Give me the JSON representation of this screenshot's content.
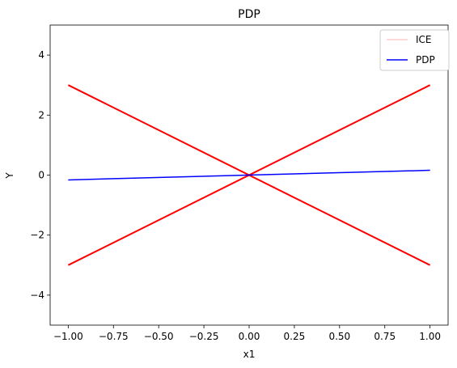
{
  "chart_data": {
    "type": "line",
    "title": "PDP",
    "xlabel": "x1",
    "ylabel": "Y",
    "xlim": [
      -1.1,
      1.1
    ],
    "ylim": [
      -5,
      5
    ],
    "xticks": [
      -1.0,
      -0.75,
      -0.5,
      -0.25,
      0.0,
      0.25,
      0.5,
      0.75,
      1.0
    ],
    "xtick_labels": [
      "−1.00",
      "−0.75",
      "−0.50",
      "−0.25",
      "0.00",
      "0.25",
      "0.50",
      "0.75",
      "1.00"
    ],
    "yticks": [
      -4,
      -2,
      0,
      2,
      4
    ],
    "ytick_labels": [
      "−4",
      "−2",
      "0",
      "2",
      "4"
    ],
    "grid": false,
    "legend_position": "top-right",
    "legend": [
      {
        "label": "ICE",
        "color": "#ffb3b3"
      },
      {
        "label": "PDP",
        "color": "#0000ff"
      }
    ],
    "series": [
      {
        "name": "ICE",
        "color": "#ff0000",
        "x": [
          -1.0,
          1.0
        ],
        "y": [
          -3.0,
          3.0
        ]
      },
      {
        "name": "ICE",
        "color": "#ff0000",
        "x": [
          -1.0,
          1.0
        ],
        "y": [
          3.0,
          -3.0
        ]
      },
      {
        "name": "PDP",
        "color": "#0000ff",
        "x": [
          -1.0,
          1.0
        ],
        "y": [
          -0.16,
          0.16
        ]
      }
    ]
  }
}
